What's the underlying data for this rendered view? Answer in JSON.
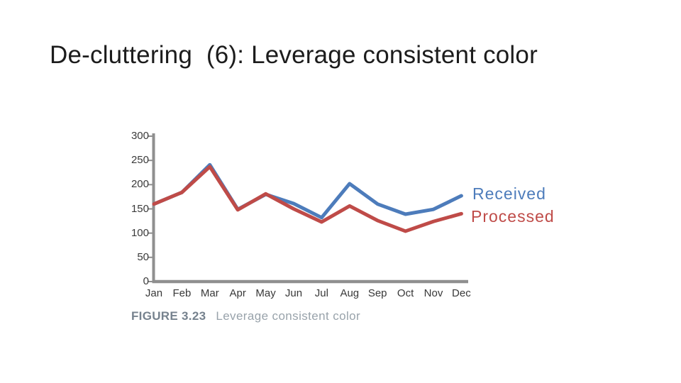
{
  "slide": {
    "title": "De-cluttering  (6): Leverage consistent color"
  },
  "figure": {
    "caption_label": "FIGURE 3.23",
    "caption_text": "Leverage consistent color"
  },
  "chart_data": {
    "type": "line",
    "title": "",
    "xlabel": "",
    "ylabel": "",
    "categories": [
      "Jan",
      "Feb",
      "Mar",
      "Apr",
      "May",
      "Jun",
      "Jul",
      "Aug",
      "Sep",
      "Oct",
      "Nov",
      "Dec"
    ],
    "series": [
      {
        "name": "Received",
        "color": "#4d7cbb",
        "values": [
          160,
          184,
          241,
          149,
          180,
          161,
          132,
          202,
          160,
          139,
          149,
          177
        ]
      },
      {
        "name": "Processed",
        "color": "#bf4b48",
        "values": [
          160,
          184,
          237,
          148,
          181,
          150,
          123,
          156,
          126,
          104,
          124,
          140
        ]
      }
    ],
    "ylim": [
      0,
      300
    ],
    "yticks": [
      0,
      50,
      100,
      150,
      200,
      250,
      300
    ],
    "grid": false,
    "legend_position": "right-of-line-end",
    "axis_color": "#8f8f8f"
  }
}
